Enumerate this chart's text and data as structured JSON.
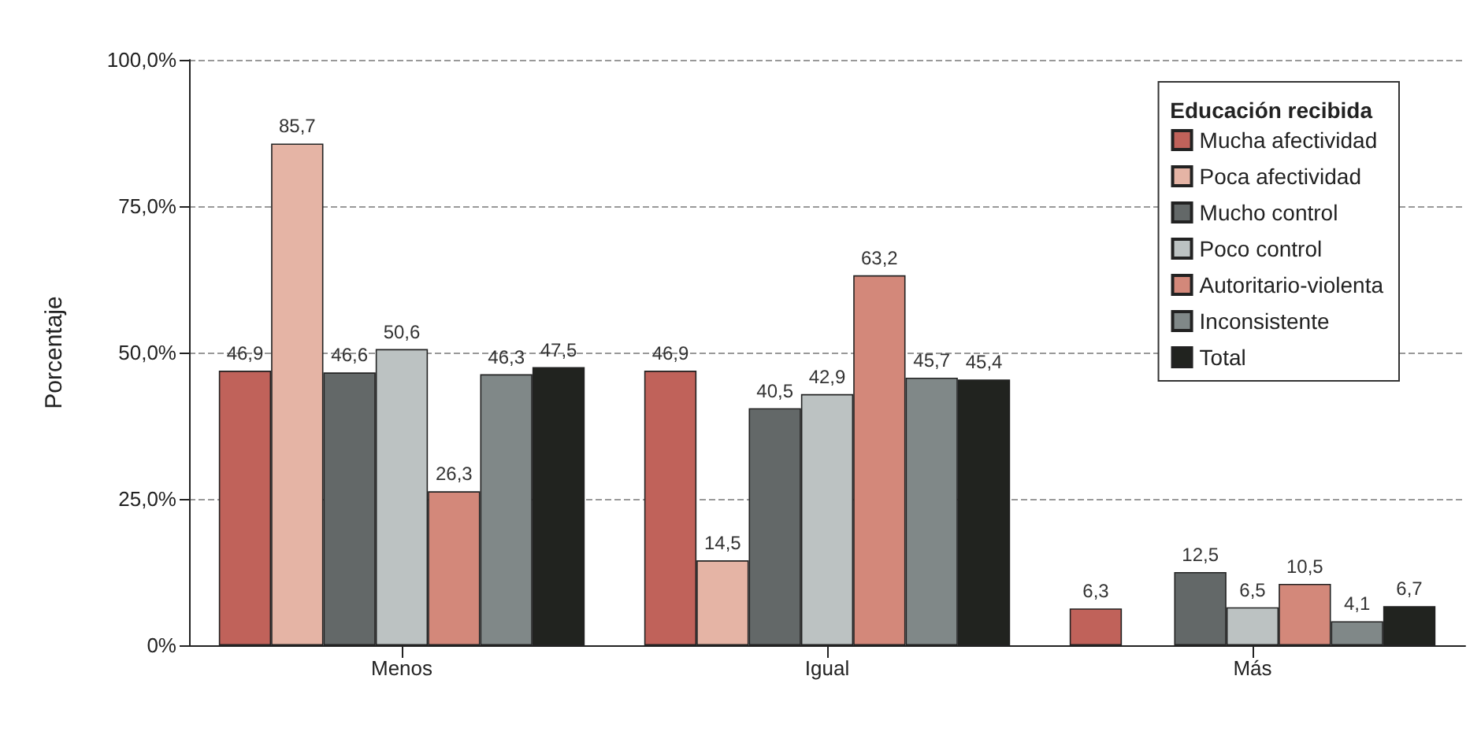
{
  "chart_data": {
    "type": "bar",
    "ylabel": "Porcentaje",
    "legend_title": "Educación recibida",
    "categories": [
      "Menos",
      "Igual",
      "Más"
    ],
    "series": [
      {
        "name": "Mucha afectividad",
        "color": "#c0625a",
        "values": [
          46.9,
          46.9,
          6.3
        ],
        "value_labels": [
          "46,9",
          "46,9",
          "6,3"
        ]
      },
      {
        "name": "Poca afectividad",
        "color": "#e5b4a5",
        "values": [
          85.7,
          14.5,
          null
        ],
        "value_labels": [
          "85,7",
          "14,5",
          null
        ]
      },
      {
        "name": "Mucho control",
        "color": "#636868",
        "values": [
          46.6,
          40.5,
          12.5
        ],
        "value_labels": [
          "46,6",
          "40,5",
          "12,5"
        ]
      },
      {
        "name": "Poco control",
        "color": "#bcc2c2",
        "values": [
          50.6,
          42.9,
          6.5
        ],
        "value_labels": [
          "50,6",
          "42,9",
          "6,5"
        ]
      },
      {
        "name": "Autoritario-violenta",
        "color": "#d3887a",
        "values": [
          26.3,
          63.2,
          10.5
        ],
        "value_labels": [
          "26,3",
          "63,2",
          "10,5"
        ]
      },
      {
        "name": "Inconsistente",
        "color": "#808888",
        "values": [
          46.3,
          45.7,
          4.1
        ],
        "value_labels": [
          "46,3",
          "45,7",
          "4,1"
        ]
      },
      {
        "name": "Total",
        "color": "#21231f",
        "values": [
          47.5,
          45.4,
          6.7
        ],
        "value_labels": [
          "47,5",
          "45,4",
          "6,7"
        ]
      }
    ],
    "ylim": [
      0,
      100
    ],
    "yticks": [
      {
        "value": 0,
        "label": "0%"
      },
      {
        "value": 25,
        "label": "25,0%"
      },
      {
        "value": 50,
        "label": "50,0%"
      },
      {
        "value": 75,
        "label": "75,0%"
      },
      {
        "value": 100,
        "label": "100,0%"
      }
    ],
    "grid": "y",
    "legend": "top right"
  }
}
